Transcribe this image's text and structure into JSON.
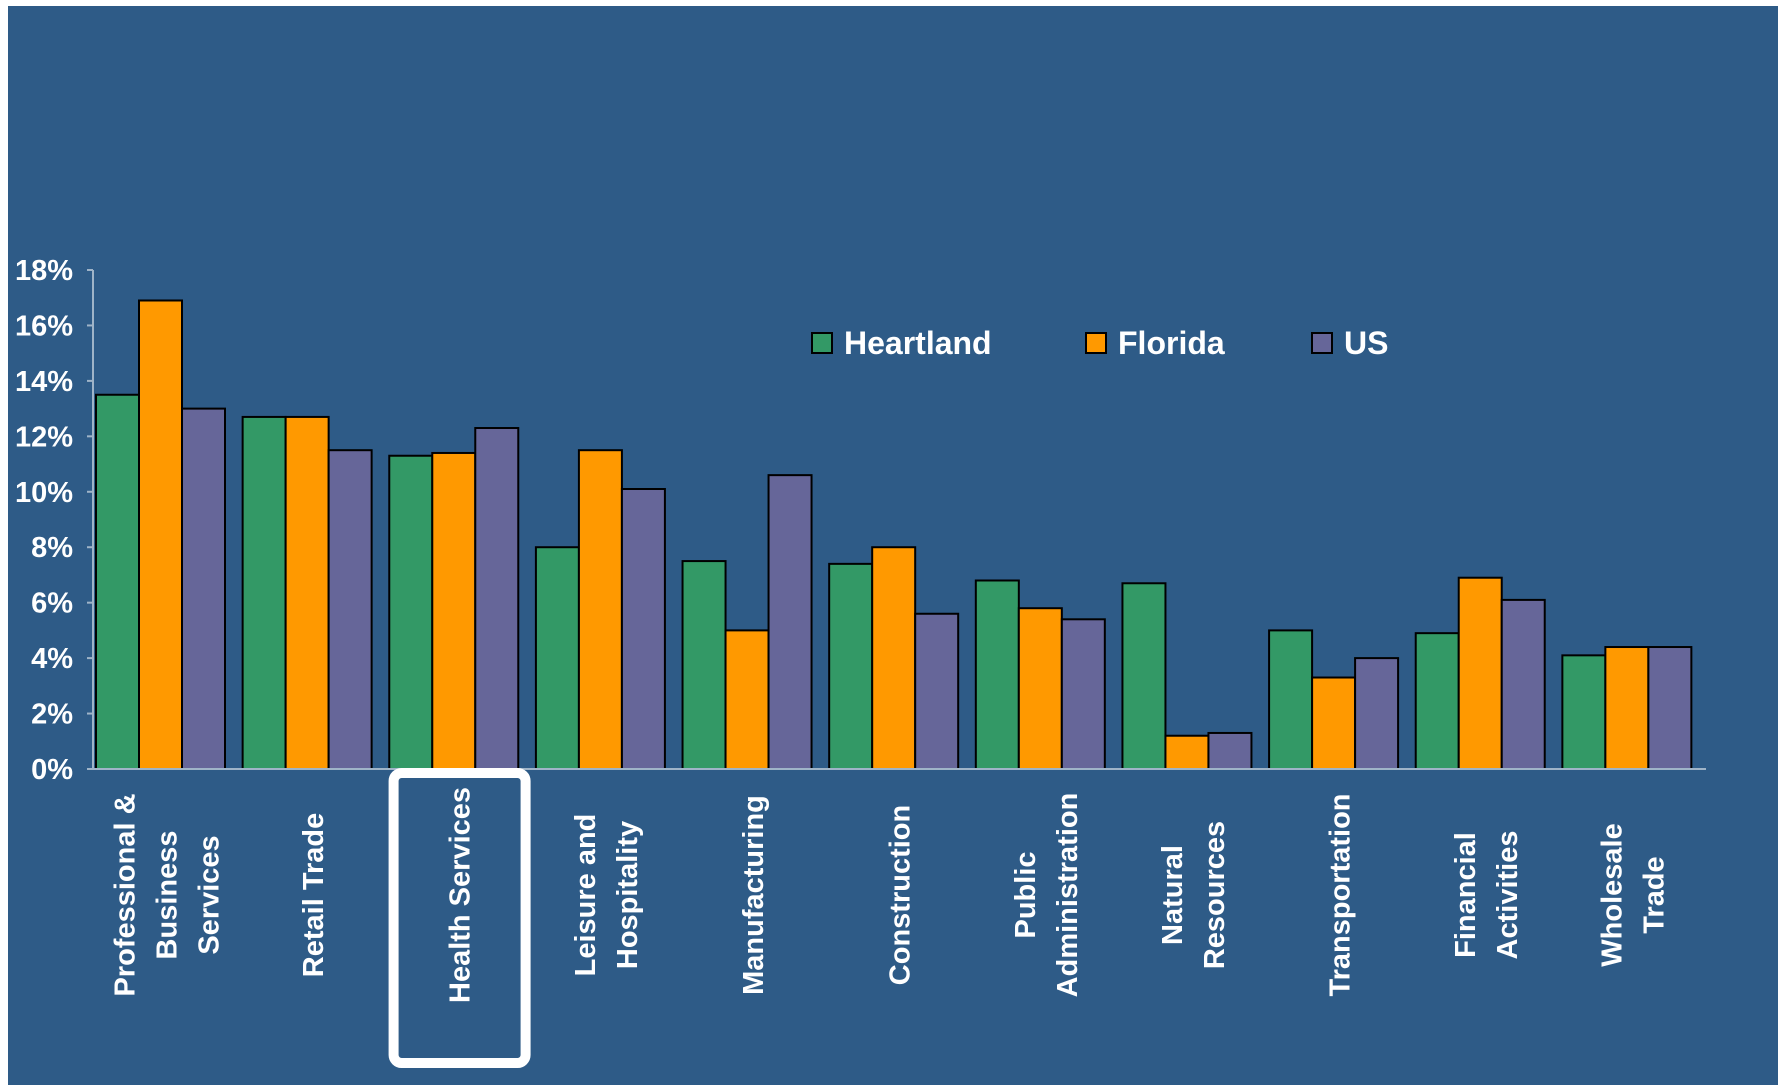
{
  "chart_data": {
    "type": "bar",
    "title": "",
    "xlabel": "",
    "ylabel": "",
    "ylim": [
      0,
      18
    ],
    "yticks": [
      "0%",
      "2%",
      "4%",
      "6%",
      "8%",
      "10%",
      "12%",
      "14%",
      "16%",
      "18%"
    ],
    "yunit": "%",
    "grid": false,
    "legend_position": "top-right",
    "highlighted_category": "Health Services",
    "categories": [
      [
        "Professional &",
        "Business",
        "Services"
      ],
      [
        "Retail Trade"
      ],
      [
        "Health Services"
      ],
      [
        "Leisure and",
        "Hospitality"
      ],
      [
        "Manufacturing"
      ],
      [
        "Construction"
      ],
      [
        "Public",
        "Administration"
      ],
      [
        "Natural",
        "Resources"
      ],
      [
        "Transportation"
      ],
      [
        "Financial",
        "Activities"
      ],
      [
        "Wholesale",
        "Trade"
      ]
    ],
    "series": [
      {
        "name": "Heartland",
        "color": "#339966",
        "values": [
          13.5,
          12.7,
          11.3,
          8.0,
          7.5,
          7.4,
          6.8,
          6.7,
          5.0,
          4.9,
          4.1
        ]
      },
      {
        "name": "Florida",
        "color": "#ff9900",
        "values": [
          16.9,
          12.7,
          11.4,
          11.5,
          5.0,
          8.0,
          5.8,
          1.2,
          3.3,
          6.9,
          4.4
        ]
      },
      {
        "name": "US",
        "color": "#666699",
        "values": [
          13.0,
          11.5,
          12.3,
          10.1,
          10.6,
          5.6,
          5.4,
          1.3,
          4.0,
          6.1,
          4.4
        ]
      }
    ]
  }
}
